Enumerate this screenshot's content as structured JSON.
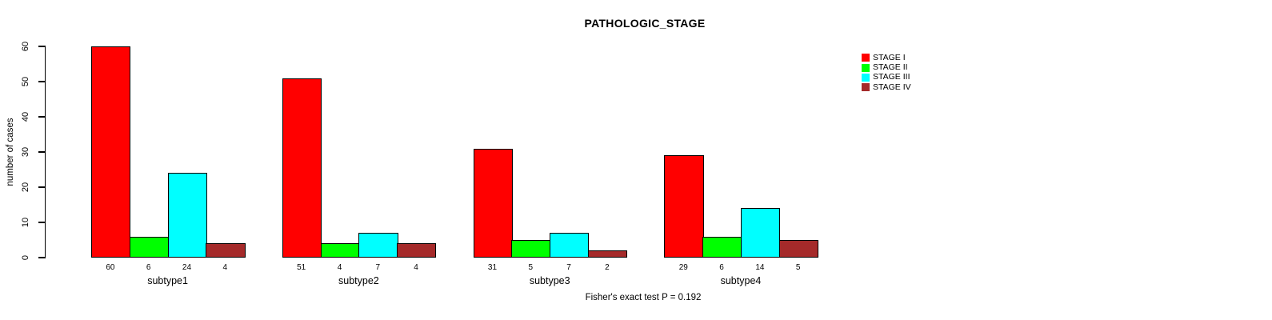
{
  "chart_data": {
    "type": "bar",
    "title": "PATHOLOGIC_STAGE",
    "ylabel": "number of cases",
    "xlabel": "",
    "ylim": [
      0,
      60
    ],
    "yticks": [
      0,
      10,
      20,
      30,
      40,
      50,
      60
    ],
    "categories": [
      "subtype1",
      "subtype2",
      "subtype3",
      "subtype4"
    ],
    "series": [
      {
        "name": "STAGE I",
        "color": "#ff0000",
        "values": [
          60,
          51,
          31,
          29
        ]
      },
      {
        "name": "STAGE II",
        "color": "#00ff00",
        "values": [
          6,
          4,
          5,
          6
        ]
      },
      {
        "name": "STAGE III",
        "color": "#00ffff",
        "values": [
          24,
          7,
          7,
          14
        ]
      },
      {
        "name": "STAGE IV",
        "color": "#a52a2a",
        "values": [
          4,
          4,
          2,
          5
        ]
      }
    ],
    "bar_value_labels": true,
    "legend_position": "top-right",
    "grid": false,
    "annotation": "Fisher's exact test P = 0.192"
  }
}
